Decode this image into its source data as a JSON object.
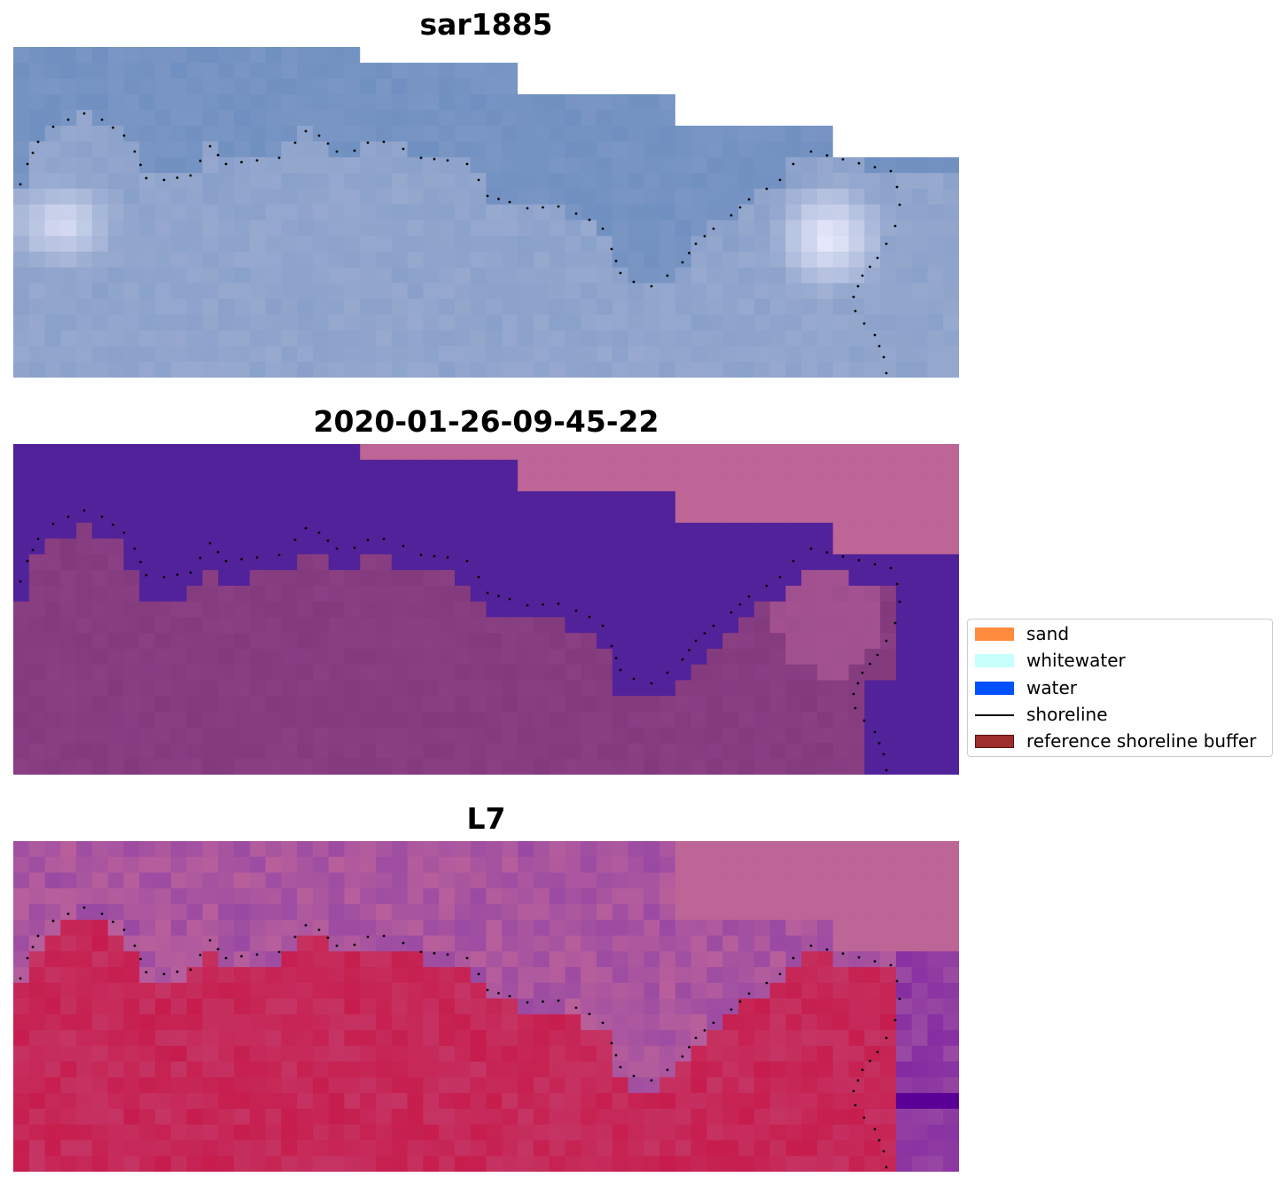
{
  "panels": [
    {
      "title": "sar1885",
      "kind": "rgb"
    },
    {
      "title": "2020-01-26-09-45-22",
      "kind": "classified"
    },
    {
      "title": "L7",
      "kind": "index"
    }
  ],
  "legend": {
    "items": [
      {
        "label": "sand",
        "color": "#ff8c3c",
        "type": "patch"
      },
      {
        "label": "whitewater",
        "color": "#c8fffa",
        "type": "patch"
      },
      {
        "label": "water",
        "color": "#0050ff",
        "type": "patch"
      },
      {
        "label": "shoreline",
        "color": "#000000",
        "type": "line"
      },
      {
        "label": "reference shoreline buffer",
        "color": "#9e2d2d",
        "type": "patch"
      }
    ]
  },
  "colors": {
    "rgb_base": "#7a96c4",
    "classified_water": "#52229a",
    "classified_land": "#8a3f83",
    "nodata": "#bd6597",
    "index_land": "#c53463",
    "index_water": "#9a4aa3"
  }
}
